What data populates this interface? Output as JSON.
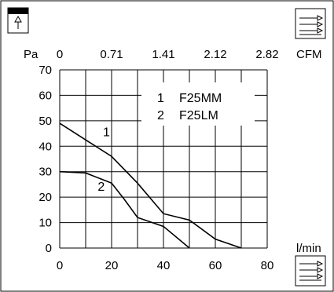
{
  "chart_data": {
    "type": "line",
    "title": "",
    "xlabel": "l/min",
    "ylabel": "Pa",
    "x2label": "CFM",
    "xlim": [
      0,
      80
    ],
    "ylim": [
      0,
      70
    ],
    "x_ticks": [
      0,
      20,
      40,
      60,
      80
    ],
    "y_ticks": [
      0,
      10,
      20,
      30,
      40,
      50,
      60,
      70
    ],
    "x2_ticks": [
      "0",
      "0.71",
      "1.41",
      "2.12",
      "2.82"
    ],
    "x2_tick_positions": [
      0,
      20,
      40,
      60,
      80
    ],
    "grid": true,
    "series": [
      {
        "label": "1",
        "name": "F25MM",
        "x": [
          0,
          10,
          20,
          30,
          40,
          50,
          60,
          70
        ],
        "y": [
          49,
          42.5,
          36,
          25.5,
          13.5,
          11,
          3.5,
          0
        ]
      },
      {
        "label": "2",
        "name": "F25LM",
        "x": [
          0,
          10,
          20,
          25,
          30,
          40,
          50
        ],
        "y": [
          30,
          29.5,
          25.5,
          19,
          12,
          8.5,
          0
        ]
      }
    ],
    "legend": [
      {
        "num": "1",
        "name": "F25MM"
      },
      {
        "num": "2",
        "name": "F25LM"
      }
    ],
    "curve_labels": [
      {
        "text": "1",
        "x": 18,
        "y": 44
      },
      {
        "text": "2",
        "x": 16,
        "y": 22.5
      }
    ]
  }
}
